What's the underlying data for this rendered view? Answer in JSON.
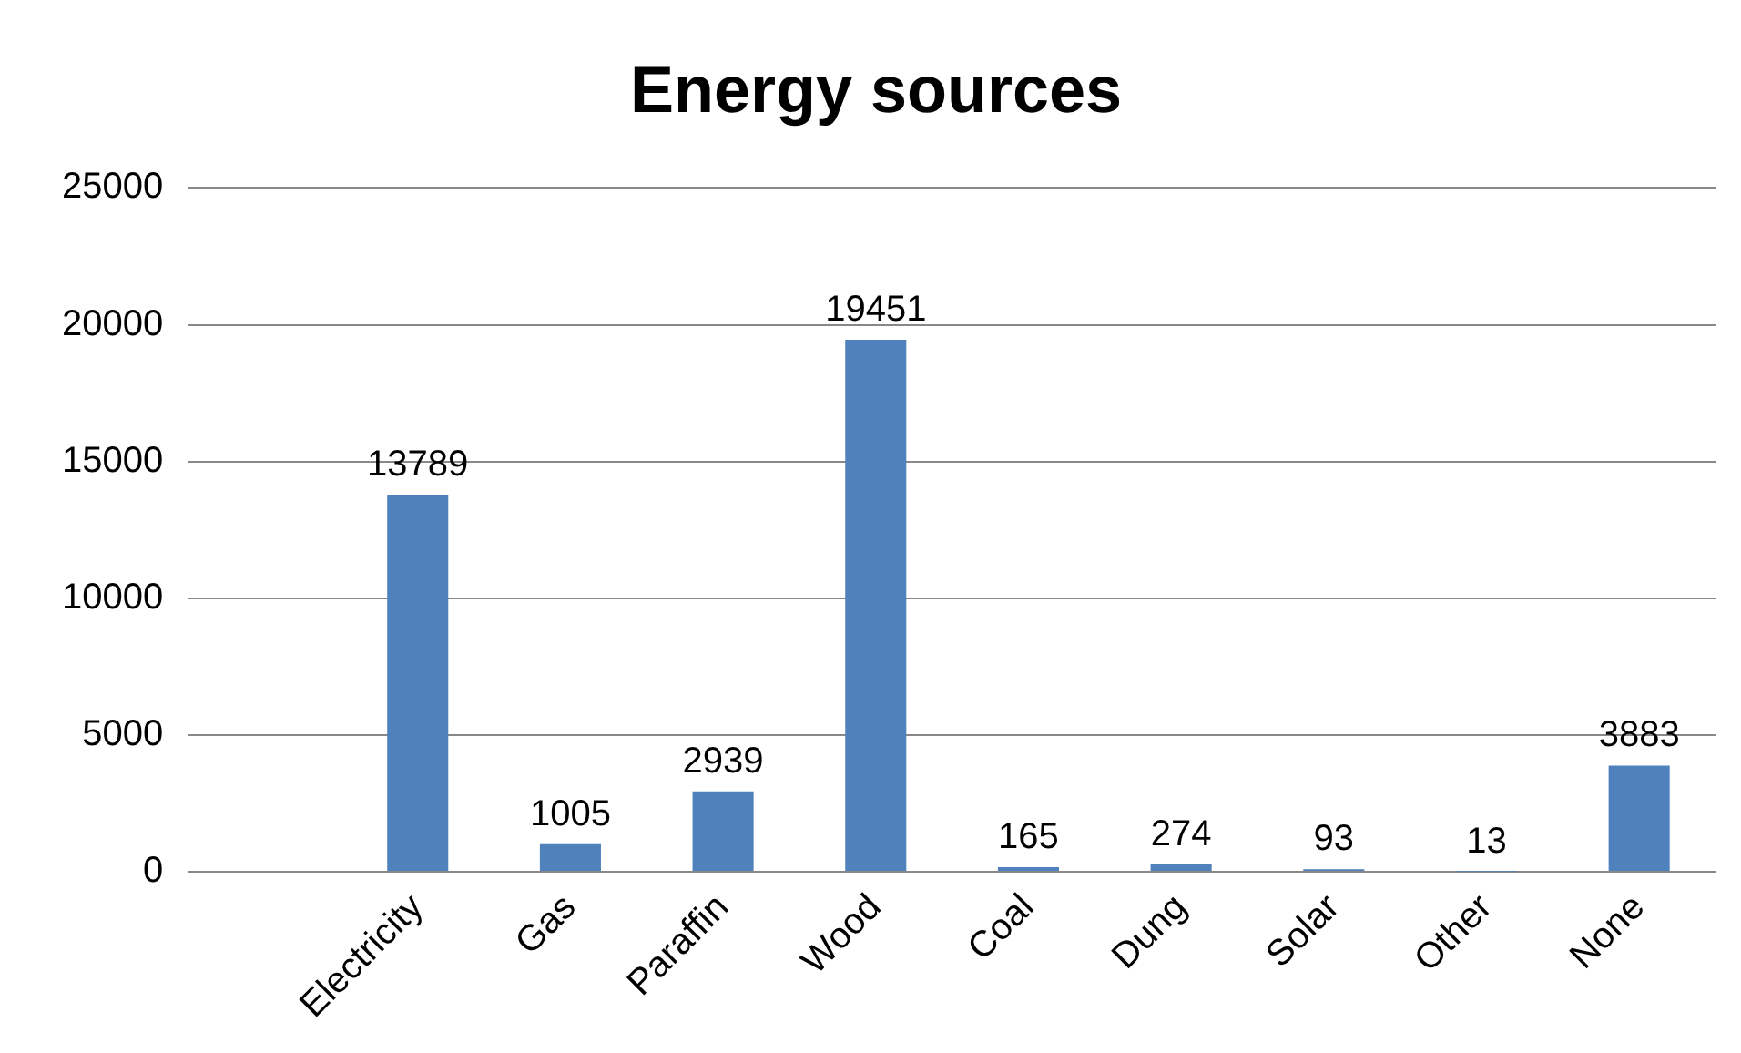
{
  "chart_data": {
    "type": "bar",
    "title": "Energy sources",
    "categories": [
      null,
      "Electricity",
      "Gas",
      "Paraffin",
      "Wood",
      "Coal",
      "Dung",
      "Solar",
      "Other",
      "None"
    ],
    "values": [
      null,
      13789,
      1005,
      2939,
      19451,
      165,
      274,
      93,
      13,
      3883
    ],
    "color": "#4f81bd",
    "ylim": [
      0,
      25000
    ],
    "yticks": [
      0,
      5000,
      10000,
      15000,
      20000,
      25000
    ],
    "grid": "y",
    "data_labels": true,
    "legend": false
  }
}
